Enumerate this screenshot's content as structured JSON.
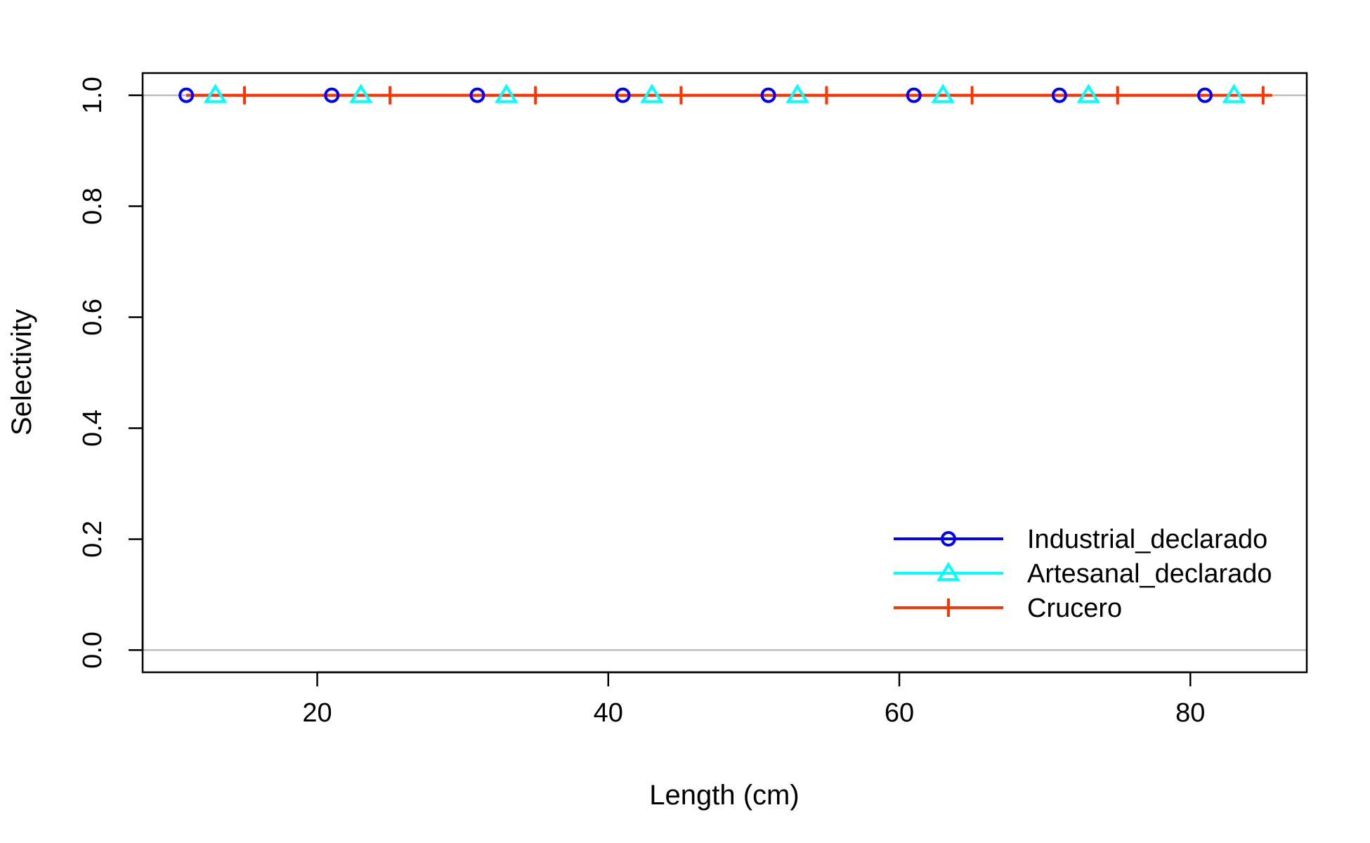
{
  "chart_data": {
    "type": "line",
    "title": "",
    "xlabel": "Length (cm)",
    "ylabel": "Selectivity",
    "xlim": [
      8,
      88
    ],
    "ylim": [
      -0.04,
      1.04
    ],
    "x_ticks": [
      20,
      40,
      60,
      80
    ],
    "y_ticks": [
      0.0,
      0.2,
      0.4,
      0.6,
      0.8,
      1.0
    ],
    "y_tick_labels": [
      "0.0",
      "0.2",
      "0.4",
      "0.6",
      "0.8",
      "1.0"
    ],
    "reference_lines_y": [
      0,
      1
    ],
    "legend_position": "bottom-right",
    "series": [
      {
        "name": "Industrial_declarado",
        "color": "#0000ff",
        "marker": "circle",
        "x": [
          11,
          21,
          31,
          41,
          51,
          61,
          71,
          81
        ],
        "y": [
          1,
          1,
          1,
          1,
          1,
          1,
          1,
          1
        ],
        "line_x": [
          11,
          81
        ]
      },
      {
        "name": "Artesanal_declarado",
        "color": "#00ffff",
        "marker": "triangle",
        "x": [
          13,
          23,
          33,
          43,
          53,
          63,
          73,
          83
        ],
        "y": [
          1,
          1,
          1,
          1,
          1,
          1,
          1,
          1
        ],
        "line_x": [
          13,
          83
        ]
      },
      {
        "name": "Crucero",
        "color": "#ff3300",
        "marker": "plus",
        "x": [
          15,
          25,
          35,
          45,
          55,
          65,
          75,
          85
        ],
        "y": [
          1,
          1,
          1,
          1,
          1,
          1,
          1,
          1
        ],
        "line_x": [
          11,
          85.5
        ]
      }
    ]
  }
}
